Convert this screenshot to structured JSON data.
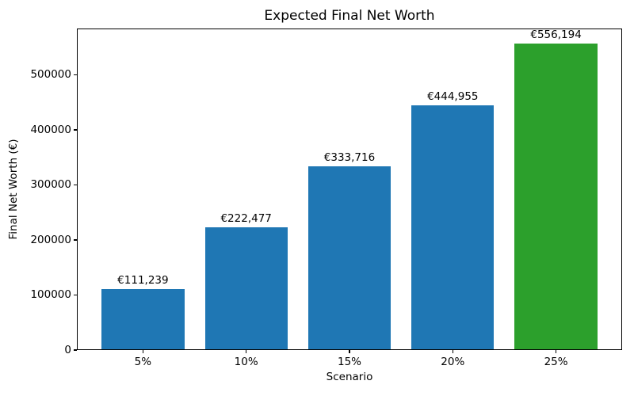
{
  "figure": {
    "background_color": "#ffffff",
    "text_color": "#000000"
  },
  "chart_data": {
    "type": "bar",
    "title": "Expected Final Net Worth",
    "xlabel": "Scenario",
    "ylabel": "Final Net Worth (€)",
    "categories": [
      "5%",
      "10%",
      "15%",
      "20%",
      "25%"
    ],
    "values": [
      111239,
      222477,
      333716,
      444955,
      556194
    ],
    "bar_labels": [
      "€111,239",
      "€222,477",
      "€333,716",
      "€444,955",
      "€556,194"
    ],
    "bar_colors": [
      "#1f77b4",
      "#1f77b4",
      "#1f77b4",
      "#1f77b4",
      "#2ca02c"
    ],
    "accent_blue": "#1f77b4",
    "accent_green": "#2ca02c",
    "yticks": [
      0,
      100000,
      200000,
      300000,
      400000,
      500000
    ],
    "ytick_labels": [
      "0",
      "100000",
      "200000",
      "300000",
      "400000",
      "500000"
    ],
    "ylim": [
      0,
      584004
    ],
    "xlim": [
      -0.64,
      4.64
    ],
    "bar_width_units": 0.8,
    "grid": false,
    "legend_position": "none"
  }
}
